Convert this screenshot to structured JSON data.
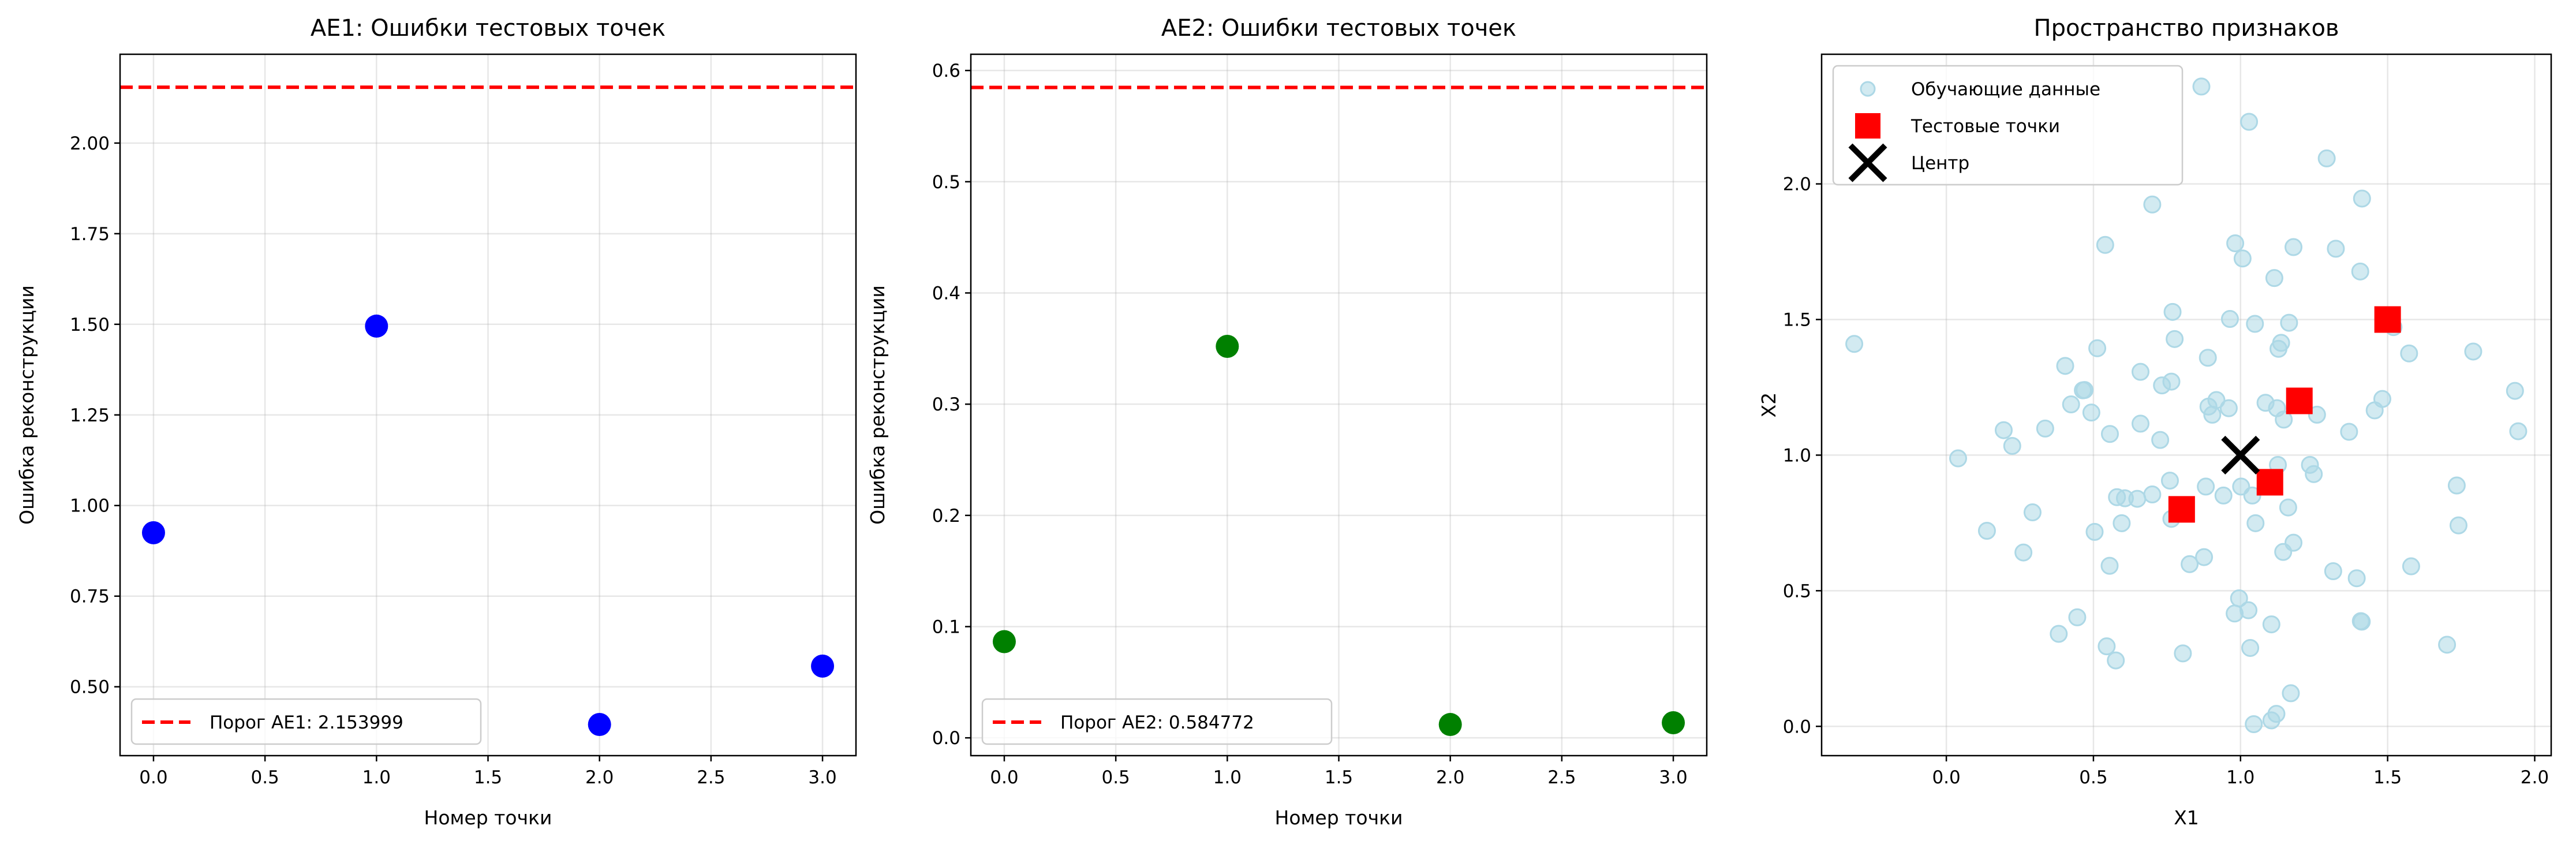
{
  "chart_data": [
    {
      "type": "scatter",
      "title": "AE1: Ошибки тестовых точек",
      "xlabel": "Номер точки",
      "ylabel": "Ошибка реконструкции",
      "xlim": [
        -0.15,
        3.15
      ],
      "ylim": [
        0.31,
        2.245
      ],
      "xticks": [
        0,
        0.5,
        1,
        1.5,
        2,
        2.5,
        3
      ],
      "xtick_labels": [
        "0.0",
        "0.5",
        "1.0",
        "1.5",
        "2.0",
        "2.5",
        "3.0"
      ],
      "yticks": [
        0.5,
        0.75,
        1.0,
        1.25,
        1.5,
        1.75,
        2.0
      ],
      "ytick_labels": [
        "0.50",
        "0.75",
        "1.00",
        "1.25",
        "1.50",
        "1.75",
        "2.00"
      ],
      "grid": true,
      "legend_placement": "lower-left",
      "series": [
        {
          "kind": "points",
          "color": "#0000ff",
          "x": [
            0,
            1,
            2,
            3
          ],
          "y": [
            0.925,
            1.495,
            0.396,
            0.557
          ]
        }
      ],
      "hlines": [
        {
          "name": "Порог AE1: 2.153999",
          "y": 2.153999,
          "color": "#ff0000",
          "style": "dashed"
        }
      ]
    },
    {
      "type": "scatter",
      "title": "AE2: Ошибки тестовых точек",
      "xlabel": "Номер точки",
      "ylabel": "Ошибка реконструкции",
      "xlim": [
        -0.15,
        3.15
      ],
      "ylim": [
        -0.016,
        0.6146
      ],
      "xticks": [
        0,
        0.5,
        1,
        1.5,
        2,
        2.5,
        3
      ],
      "xtick_labels": [
        "0.0",
        "0.5",
        "1.0",
        "1.5",
        "2.0",
        "2.5",
        "3.0"
      ],
      "yticks": [
        0,
        0.1,
        0.2,
        0.3,
        0.4,
        0.5,
        0.6
      ],
      "ytick_labels": [
        "0.0",
        "0.1",
        "0.2",
        "0.3",
        "0.4",
        "0.5",
        "0.6"
      ],
      "grid": true,
      "legend_placement": "lower-left",
      "series": [
        {
          "kind": "points",
          "color": "#008000",
          "x": [
            0,
            1,
            2,
            3
          ],
          "y": [
            0.0865,
            0.352,
            0.012,
            0.0136
          ]
        }
      ],
      "hlines": [
        {
          "name": "Порог AE2: 0.584772",
          "y": 0.584772,
          "color": "#ff0000",
          "style": "dashed"
        }
      ]
    },
    {
      "type": "scatter",
      "title": "Пространство признаков",
      "xlabel": "X1",
      "ylabel": "X2",
      "xlim": [
        -0.424,
        2.056
      ],
      "ylim": [
        -0.108,
        2.478
      ],
      "xticks": [
        0,
        0.5,
        1,
        1.5,
        2
      ],
      "xtick_labels": [
        "0.0",
        "0.5",
        "1.0",
        "1.5",
        "2.0"
      ],
      "yticks": [
        0,
        0.5,
        1,
        1.5,
        2
      ],
      "ytick_labels": [
        "0.0",
        "0.5",
        "1.0",
        "1.5",
        "2.0"
      ],
      "grid": true,
      "legend_placement": "upper-left",
      "series": [
        {
          "kind": "circles",
          "name": "Обучающие данные",
          "color": "#add8e6",
          "x": [
            0.867,
            1.029,
            1.293,
            1.413,
            0.7,
            0.54,
            0.982,
            1.007,
            1.18,
            1.324,
            1.407,
            1.115,
            0.769,
            0.964,
            1.049,
            1.165,
            1.52,
            -0.313,
            0.513,
            1.138,
            1.129,
            0.776,
            1.573,
            1.791,
            0.889,
            0.404,
            0.66,
            0.765,
            0.733,
            0.464,
            0.47,
            1.933,
            0.918,
            1.482,
            0.424,
            1.085,
            1.124,
            0.891,
            0.96,
            0.493,
            0.904,
            1.456,
            1.26,
            1.147,
            0.66,
            0.195,
            0.336,
            0.556,
            1.369,
            1.944,
            0.224,
            0.727,
            0.04,
            1.127,
            1.236,
            1.249,
            0.76,
            0.882,
            1.002,
            1.735,
            0.7,
            0.942,
            1.04,
            0.58,
            0.607,
            0.649,
            1.162,
            0.293,
            0.765,
            0.596,
            1.051,
            1.741,
            0.138,
            0.504,
            1.18,
            0.262,
            1.145,
            0.876,
            0.827,
            0.555,
            1.58,
            1.315,
            1.395,
            0.995,
            0.98,
            1.027,
            0.445,
            1.409,
            1.412,
            1.105,
            0.382,
            0.545,
            1.033,
            1.702,
            0.576,
            0.804,
            1.171,
            1.122,
            1.105,
            1.045
          ],
          "y": [
            2.359,
            2.229,
            2.094,
            1.946,
            1.924,
            1.775,
            1.781,
            1.725,
            1.767,
            1.761,
            1.677,
            1.653,
            1.528,
            1.502,
            1.484,
            1.488,
            1.472,
            1.41,
            1.394,
            1.414,
            1.392,
            1.428,
            1.375,
            1.382,
            1.359,
            1.329,
            1.307,
            1.271,
            1.257,
            1.239,
            1.24,
            1.237,
            1.203,
            1.207,
            1.187,
            1.193,
            1.173,
            1.179,
            1.173,
            1.157,
            1.149,
            1.165,
            1.149,
            1.131,
            1.116,
            1.092,
            1.098,
            1.078,
            1.086,
            1.088,
            1.034,
            1.056,
            0.988,
            0.964,
            0.964,
            0.93,
            0.906,
            0.884,
            0.884,
            0.888,
            0.855,
            0.851,
            0.851,
            0.845,
            0.841,
            0.839,
            0.807,
            0.789,
            0.765,
            0.749,
            0.749,
            0.741,
            0.721,
            0.717,
            0.677,
            0.641,
            0.643,
            0.624,
            0.598,
            0.592,
            0.59,
            0.572,
            0.546,
            0.472,
            0.416,
            0.428,
            0.402,
            0.388,
            0.386,
            0.376,
            0.341,
            0.295,
            0.289,
            0.301,
            0.243,
            0.269,
            0.122,
            0.046,
            0.022,
            0.008
          ]
        },
        {
          "kind": "squares",
          "name": "Тестовые точки",
          "color": "#ff0000",
          "x": [
            0.8,
            1.1,
            1.2,
            1.5
          ],
          "y": [
            0.8,
            0.9,
            1.2,
            1.5
          ]
        },
        {
          "kind": "cross",
          "name": "Центр",
          "color": "#000000",
          "x": [
            1.0
          ],
          "y": [
            1.0
          ]
        }
      ],
      "hlines": []
    }
  ]
}
